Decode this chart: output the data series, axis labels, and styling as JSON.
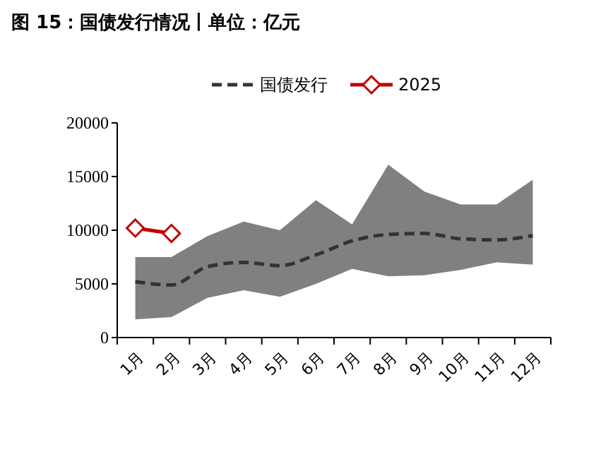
{
  "chart_data": {
    "type": "line",
    "title": "图 15：国债发行情况丨单位：亿元",
    "categories": [
      "1月",
      "2月",
      "3月",
      "4月",
      "5月",
      "6月",
      "7月",
      "8月",
      "9月",
      "10月",
      "11月",
      "12月"
    ],
    "series": [
      {
        "name": "国债发行",
        "color": "#333333",
        "line_style": "dashed",
        "marker": "none",
        "values": [
          5200,
          4900,
          6600,
          7000,
          6700,
          7700,
          9000,
          9600,
          9700,
          9200,
          9100,
          9500
        ],
        "lower": [
          1700,
          1900,
          3700,
          4400,
          3800,
          5000,
          6400,
          5700,
          5800,
          6300,
          7000,
          6800
        ],
        "upper": [
          7500,
          7500,
          9450,
          10800,
          10000,
          12800,
          10550,
          16100,
          13600,
          12400,
          12400,
          14700
        ]
      },
      {
        "name": "2025",
        "color": "#c00000",
        "line_style": "solid",
        "marker": "diamond",
        "values": [
          10200,
          9700,
          null,
          null,
          null,
          null,
          null,
          null,
          null,
          null,
          null,
          null
        ]
      }
    ],
    "ylim": [
      0,
      20000
    ],
    "yticks": [
      0,
      5000,
      10000,
      15000,
      20000
    ],
    "grid": false,
    "legend": "top"
  }
}
